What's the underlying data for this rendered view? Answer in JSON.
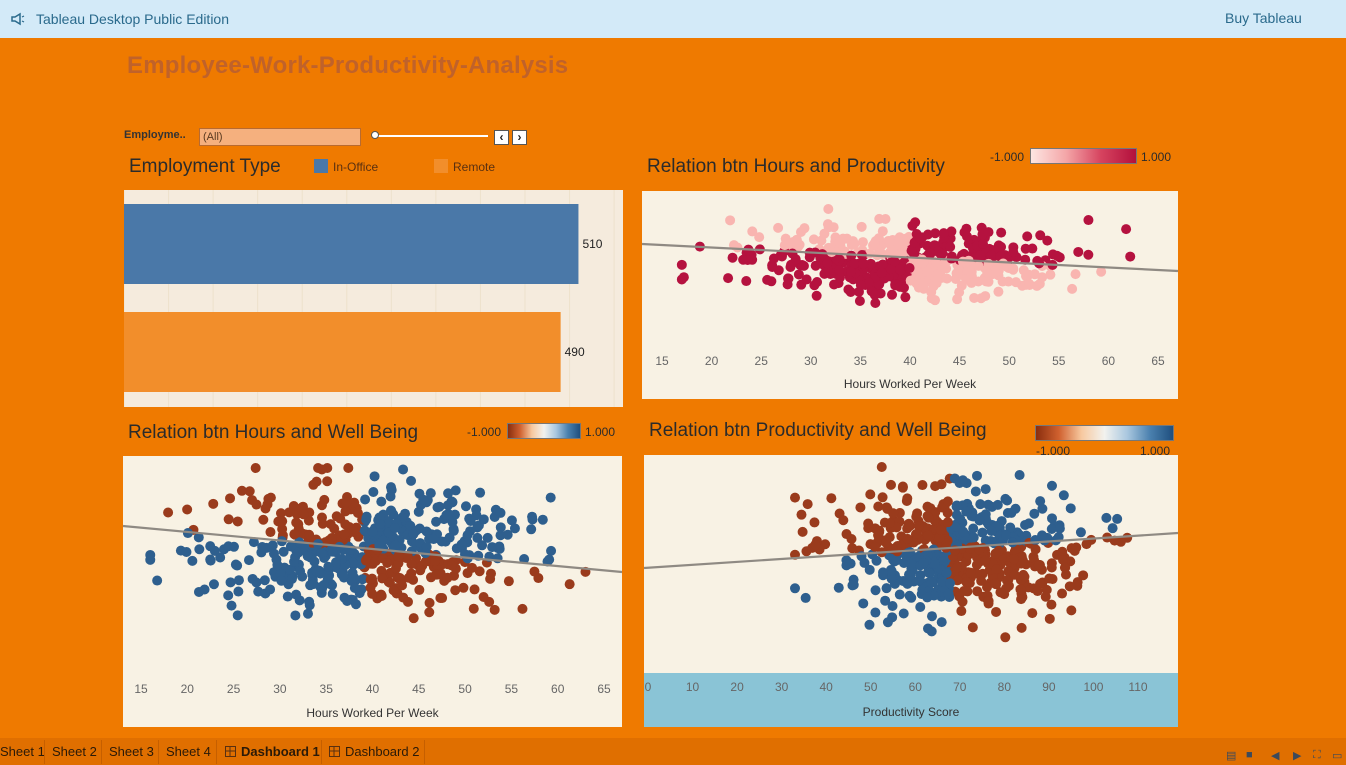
{
  "app": {
    "title": "Tableau Desktop Public Edition",
    "buy_label": "Buy Tableau"
  },
  "dashboard": {
    "title": "Employee-Work-Productivity-Analysis"
  },
  "filter": {
    "label": "Employme..",
    "value": "(All)"
  },
  "employment_chart": {
    "title": "Employment Type",
    "legend": [
      {
        "label": "In-Office",
        "color": "#4a78a8"
      },
      {
        "label": "Remote",
        "color": "#f28e2b"
      }
    ]
  },
  "hp_chart": {
    "title": "Relation btn Hours and Productivity",
    "legend_min": "-1.000",
    "legend_max": "1.000",
    "xlabel": "Hours Worked Per Week"
  },
  "hw_chart": {
    "title": "Relation btn Hours and Well Being",
    "legend_min": "-1.000",
    "legend_max": "1.000",
    "xlabel": "Hours Worked Per Week"
  },
  "pw_chart": {
    "title": "Relation btn Productivity and Well Being",
    "legend_min": "-1.000",
    "legend_max": "1.000",
    "xlabel": "Productivity Score"
  },
  "chart_data": [
    {
      "type": "bar",
      "title": "Employment Type",
      "orientation": "horizontal",
      "categories": [
        "In-Office",
        "Remote"
      ],
      "values": [
        510,
        490
      ],
      "colors": [
        "#4a78a8",
        "#f28e2b"
      ]
    },
    {
      "type": "scatter",
      "title": "Relation btn Hours and Productivity",
      "xlabel": "Hours Worked Per Week",
      "x_ticks": [
        "15",
        "20",
        "25",
        "30",
        "35",
        "40",
        "45",
        "50",
        "55",
        "60",
        "65"
      ],
      "xlim": [
        15,
        65
      ],
      "color_scale": {
        "min": -1,
        "max": 1,
        "colors": [
          "#fbc8c0",
          "#b5123f"
        ]
      },
      "trend": "slight negative"
    },
    {
      "type": "scatter",
      "title": "Relation btn Hours and Well Being",
      "xlabel": "Hours Worked Per Week",
      "x_ticks": [
        "15",
        "20",
        "25",
        "30",
        "35",
        "40",
        "45",
        "50",
        "55",
        "60",
        "65"
      ],
      "xlim": [
        15,
        65
      ],
      "color_scale": {
        "min": -1,
        "max": 1,
        "colors": [
          "#9a3b1c",
          "#2e5f8e"
        ]
      },
      "trend": "negative"
    },
    {
      "type": "scatter",
      "title": "Relation btn Productivity and Well Being",
      "xlabel": "Productivity Score",
      "x_ticks": [
        "0",
        "10",
        "20",
        "30",
        "40",
        "50",
        "60",
        "70",
        "80",
        "90",
        "100",
        "110"
      ],
      "xlim": [
        0,
        118
      ],
      "color_scale": {
        "min": -1,
        "max": 1,
        "colors": [
          "#9a3b1c",
          "#2e5f8e"
        ]
      },
      "trend": "positive"
    }
  ],
  "tabs": [
    {
      "label": "Sheet 1",
      "icon": ""
    },
    {
      "label": "Sheet 2",
      "icon": ""
    },
    {
      "label": "Sheet 3",
      "icon": ""
    },
    {
      "label": "Sheet 4",
      "icon": ""
    },
    {
      "label": "Dashboard 1",
      "icon": "dashboard-icon"
    },
    {
      "label": "Dashboard 2",
      "icon": "dashboard-icon"
    }
  ],
  "toolbar_icons": [
    "sheet-sorter-icon",
    "filmstrip-icon",
    "prev-icon",
    "next-icon",
    "fit-icon",
    "presentation-icon"
  ]
}
